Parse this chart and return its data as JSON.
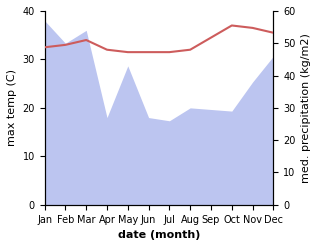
{
  "months": [
    "Jan",
    "Feb",
    "Mar",
    "Apr",
    "May",
    "Jun",
    "Jul",
    "Aug",
    "Sep",
    "Oct",
    "Nov",
    "Dec"
  ],
  "month_indices": [
    1,
    2,
    3,
    4,
    5,
    6,
    7,
    8,
    9,
    10,
    11,
    12
  ],
  "temp": [
    32.5,
    33.0,
    34.0,
    32.0,
    31.5,
    31.5,
    31.5,
    32.0,
    34.5,
    37.0,
    36.5,
    35.5
  ],
  "precip": [
    57.0,
    50.0,
    54.0,
    27.0,
    43.0,
    27.0,
    26.0,
    30.0,
    29.5,
    29.0,
    38.0,
    46.0
  ],
  "temp_color": "#cd5c5c",
  "precip_fill_color": "#bcc5f0",
  "temp_ylim": [
    0,
    40
  ],
  "precip_ylim": [
    0,
    60
  ],
  "xlabel": "date (month)",
  "ylabel_left": "max temp (C)",
  "ylabel_right": "med. precipitation (kg/m2)",
  "bg_color": "#ffffff",
  "tick_fontsize": 7,
  "label_fontsize": 8
}
